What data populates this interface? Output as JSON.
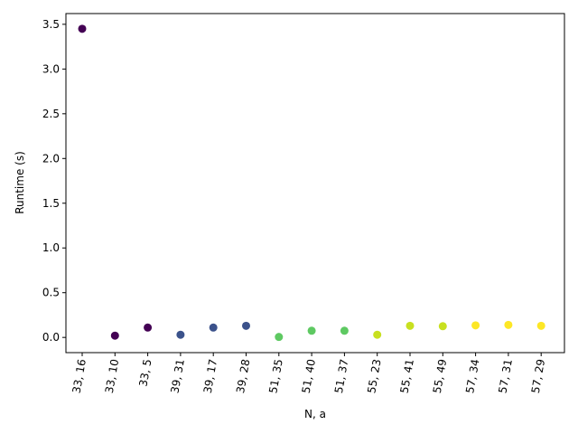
{
  "chart_data": {
    "type": "scatter",
    "title": "",
    "xlabel": "N, a",
    "ylabel": "Runtime (s)",
    "categories": [
      "33, 16",
      "33, 10",
      "33, 5",
      "39, 31",
      "39, 17",
      "39, 28",
      "51, 35",
      "51, 40",
      "51, 37",
      "55, 23",
      "55, 41",
      "55, 49",
      "57, 34",
      "57, 31",
      "57, 29"
    ],
    "values": [
      3.45,
      0.02,
      0.11,
      0.03,
      0.11,
      0.13,
      0.005,
      0.075,
      0.075,
      0.03,
      0.13,
      0.125,
      0.135,
      0.14,
      0.13
    ],
    "point_colors": [
      "#440154",
      "#440154",
      "#440154",
      "#3b528b",
      "#3b528b",
      "#3b528b",
      "#5ec962",
      "#5ec962",
      "#5ec962",
      "#c8e020",
      "#c8e020",
      "#c8e020",
      "#fde725",
      "#fde725",
      "#fde725"
    ],
    "ylim": [
      -0.17,
      3.62
    ],
    "yticks": [
      0.0,
      0.5,
      1.0,
      1.5,
      2.0,
      2.5,
      3.0,
      3.5
    ],
    "ytick_labels": [
      "0.0",
      "0.5",
      "1.0",
      "1.5",
      "2.0",
      "2.5",
      "3.0",
      "3.5"
    ],
    "grid": false,
    "legend": "none"
  }
}
